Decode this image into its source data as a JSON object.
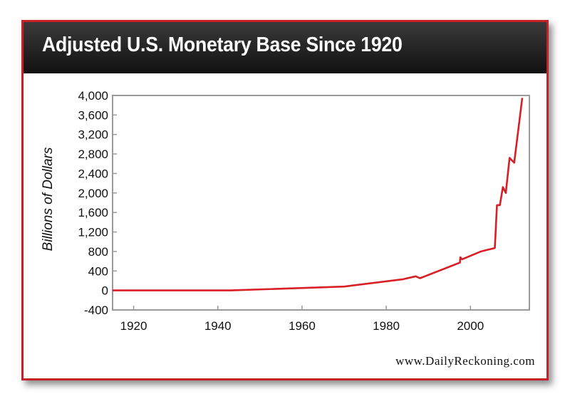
{
  "header": {
    "title": "Adjusted U.S. Monetary Base Since 1920"
  },
  "footer": {
    "source_url": "www.DailyReckoning.com"
  },
  "colors": {
    "line": "#d81f26",
    "frame": "#c8202a",
    "title_bg": "#222222",
    "axis": "#9a9a9a"
  },
  "chart_data": {
    "type": "line",
    "title": "Adjusted U.S. Monetary Base Since 1920",
    "xlabel": "",
    "ylabel": "Billions of Dollars",
    "xlim": [
      1915,
      2014
    ],
    "ylim": [
      -400,
      4000
    ],
    "x_ticks": [
      1920,
      1940,
      1960,
      1980,
      2000
    ],
    "x_tick_labels": [
      "1920",
      "1940",
      "1960",
      "1980",
      "2000"
    ],
    "y_ticks": [
      -400,
      0,
      400,
      800,
      1200,
      1600,
      2000,
      2400,
      2800,
      3200,
      3600,
      4000
    ],
    "y_tick_labels": [
      "-400",
      "0",
      "400",
      "800",
      "1,200",
      "1,600",
      "2,000",
      "2,400",
      "2,800",
      "3,200",
      "3,600",
      "4,000"
    ],
    "grid": false,
    "legend": "none",
    "series": [
      {
        "values": [
          {
            "x": 1915,
            "y": 0
          },
          {
            "x": 1943,
            "y": 0
          },
          {
            "x": 1970,
            "y": 80
          },
          {
            "x": 1984,
            "y": 230
          },
          {
            "x": 1987,
            "y": 290
          },
          {
            "x": 1988,
            "y": 250
          },
          {
            "x": 1997.5,
            "y": 570
          },
          {
            "x": 1997.6,
            "y": 680
          },
          {
            "x": 1998,
            "y": 640
          },
          {
            "x": 2002.5,
            "y": 800
          },
          {
            "x": 2005.8,
            "y": 870
          },
          {
            "x": 2006.3,
            "y": 1750
          },
          {
            "x": 2007,
            "y": 1750
          },
          {
            "x": 2007.7,
            "y": 2120
          },
          {
            "x": 2008.4,
            "y": 2000
          },
          {
            "x": 2009.3,
            "y": 2720
          },
          {
            "x": 2010.4,
            "y": 2620
          },
          {
            "x": 2012.3,
            "y": 3950
          }
        ]
      }
    ]
  }
}
